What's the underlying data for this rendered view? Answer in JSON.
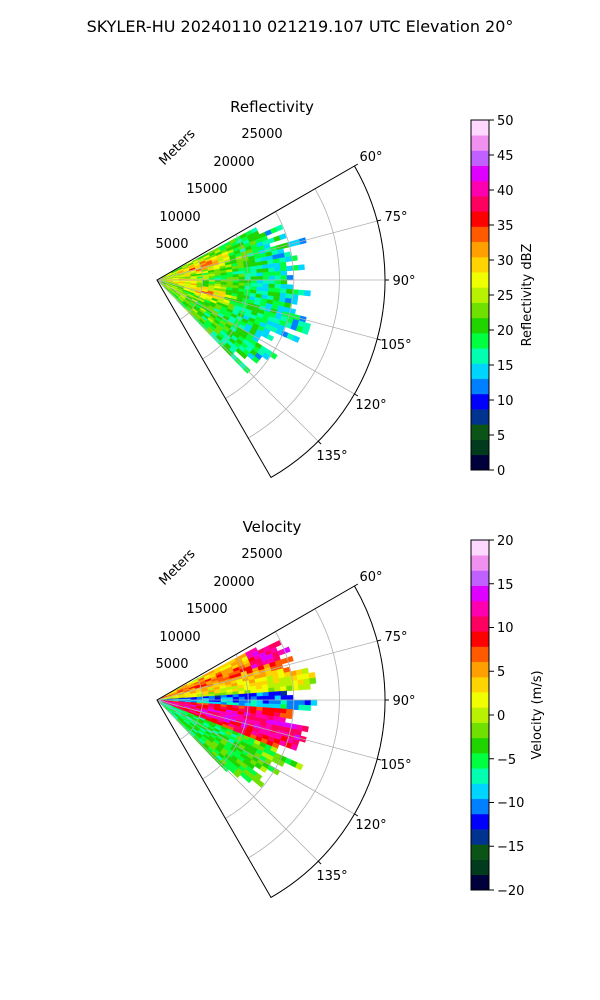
{
  "figure_title": "SKYLER-HU  20240110  021219.107 UTC Elevation 20°",
  "colors": {
    "pyart_scale": [
      "#00003a",
      "#003b1d",
      "#0c5416",
      "#00338f",
      "#0000ff",
      "#0080ff",
      "#00d5ff",
      "#00ffb0",
      "#00ff40",
      "#20d400",
      "#6fe000",
      "#b8f200",
      "#f0ff00",
      "#ffd400",
      "#ffa000",
      "#ff5a00",
      "#ff0000",
      "#ff0060",
      "#ff00b0",
      "#e000ff",
      "#c060ff",
      "#f090f0",
      "#ffd8ff"
    ],
    "grid": "#b0b0b0"
  },
  "chart_data": [
    {
      "type": "heatmap",
      "projection": "polar-sector",
      "title": "Reflectivity",
      "range_label": "Meters",
      "range_ticks": [
        5000,
        10000,
        15000,
        20000,
        25000
      ],
      "range_tick_labels": [
        "5000",
        "10000",
        "15000",
        "20000",
        "25000"
      ],
      "rmax": 25000,
      "azimuth_range": [
        60,
        150
      ],
      "angle_ticks": [
        60,
        75,
        90,
        105,
        120,
        135
      ],
      "angle_tick_labels": [
        "60°",
        "75°",
        "90°",
        "105°",
        "120°",
        "135°"
      ],
      "grid": true,
      "colorbar": {
        "label": "Reflectivity dBZ",
        "vmin": 0,
        "vmax": 50,
        "ticks": [
          0,
          5,
          10,
          15,
          20,
          25,
          30,
          35,
          40,
          45,
          50
        ],
        "tick_labels": [
          "0",
          "5",
          "10",
          "15",
          "20",
          "25",
          "30",
          "35",
          "40",
          "45",
          "50"
        ]
      },
      "echo_region": {
        "az_min": 62,
        "az_max": 136,
        "range_max_m": 16000
      }
    },
    {
      "type": "heatmap",
      "projection": "polar-sector",
      "title": "Velocity",
      "range_label": "Meters",
      "range_ticks": [
        5000,
        10000,
        15000,
        20000,
        25000
      ],
      "range_tick_labels": [
        "5000",
        "10000",
        "15000",
        "20000",
        "25000"
      ],
      "rmax": 25000,
      "azimuth_range": [
        60,
        150
      ],
      "angle_ticks": [
        60,
        75,
        90,
        105,
        120,
        135
      ],
      "angle_tick_labels": [
        "60°",
        "75°",
        "90°",
        "105°",
        "120°",
        "135°"
      ],
      "grid": true,
      "colorbar": {
        "label": "Velocity (m/s)",
        "vmin": -20,
        "vmax": 20,
        "ticks": [
          -20,
          -15,
          -10,
          -5,
          0,
          5,
          10,
          15,
          20
        ],
        "tick_labels": [
          "−20",
          "−15",
          "−10",
          "−5",
          "0",
          "5",
          "10",
          "15",
          "20"
        ]
      },
      "echo_region": {
        "az_min": 62,
        "az_max": 136,
        "range_max_m": 16000
      }
    }
  ]
}
